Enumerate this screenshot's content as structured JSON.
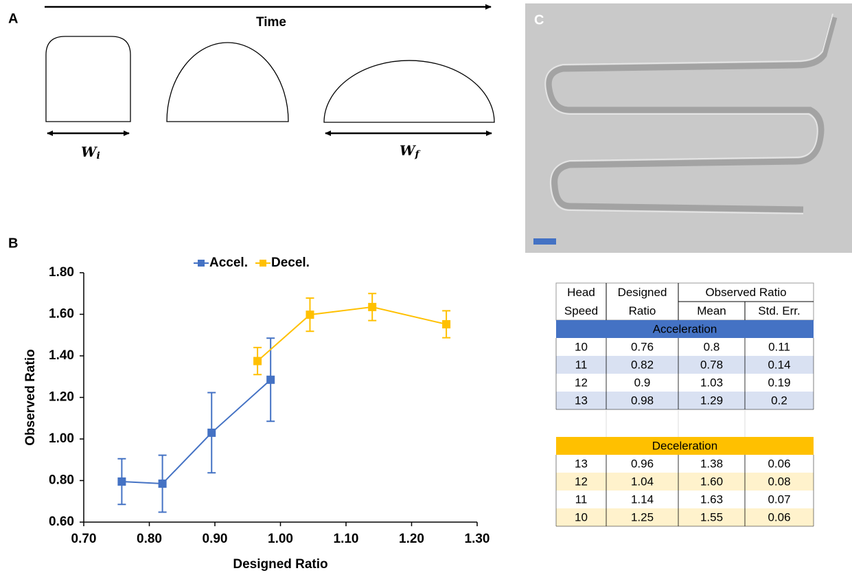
{
  "panels": {
    "a": "A",
    "b": "B",
    "c": "C"
  },
  "diagram": {
    "axis_label": "Time",
    "width_initial": {
      "symbol": "W",
      "sub": "i"
    },
    "width_final": {
      "symbol": "W",
      "sub": "f"
    }
  },
  "chart_data": {
    "type": "line",
    "x_label": "Designed Ratio",
    "y_label": "Observed Ratio",
    "legend": "top",
    "xlim": [
      0.7,
      1.3
    ],
    "ylim": [
      0.6,
      1.8
    ],
    "xticks": [
      {
        "value": 0.7,
        "label": "0.70"
      },
      {
        "value": 0.8,
        "label": "0.80"
      },
      {
        "value": 0.9,
        "label": "0.90"
      },
      {
        "value": 1.0,
        "label": "1.00"
      },
      {
        "value": 1.1,
        "label": "1.10"
      },
      {
        "value": 1.2,
        "label": "1.20"
      },
      {
        "value": 1.3,
        "label": "1.30"
      }
    ],
    "yticks": [
      {
        "value": 0.6,
        "label": "0.60"
      },
      {
        "value": 0.8,
        "label": "0.80"
      },
      {
        "value": 1.0,
        "label": "1.00"
      },
      {
        "value": 1.2,
        "label": "1.20"
      },
      {
        "value": 1.4,
        "label": "1.40"
      },
      {
        "value": 1.6,
        "label": "1.60"
      },
      {
        "value": 1.8,
        "label": "1.80"
      }
    ],
    "series": [
      {
        "name": "Accel.",
        "color": "#4472c4",
        "x": [
          0.758,
          0.82,
          0.895,
          0.985
        ],
        "values": [
          0.795,
          0.785,
          1.03,
          1.285
        ],
        "errors": [
          0.11,
          0.137,
          0.193,
          0.2
        ]
      },
      {
        "name": "Decel.",
        "color": "#ffc000",
        "x": [
          0.965,
          1.045,
          1.14,
          1.253
        ],
        "values": [
          1.375,
          1.598,
          1.635,
          1.552
        ],
        "errors": [
          0.065,
          0.08,
          0.065,
          0.065
        ]
      }
    ]
  },
  "table": {
    "header": [
      [
        "Head",
        "Designed",
        "Observed Ratio"
      ],
      [
        "Speed",
        "Ratio",
        "Mean",
        "Std. Err."
      ]
    ],
    "sections": [
      {
        "title": "Acceleration",
        "color": "#4472c4",
        "stripe": "#d9e1f2",
        "rows": [
          [
            "10",
            "0.76",
            "0.8",
            "0.11"
          ],
          [
            "11",
            "0.82",
            "0.78",
            "0.14"
          ],
          [
            "12",
            "0.9",
            "1.03",
            "0.19"
          ],
          [
            "13",
            "0.98",
            "1.29",
            "0.2"
          ]
        ]
      },
      {
        "title": "Deceleration",
        "color": "#ffc000",
        "stripe": "#fff2cc",
        "rows": [
          [
            "13",
            "0.96",
            "1.38",
            "0.06"
          ],
          [
            "12",
            "1.04",
            "1.60",
            "0.08"
          ],
          [
            "11",
            "1.14",
            "1.63",
            "0.07"
          ],
          [
            "10",
            "1.25",
            "1.55",
            "0.06"
          ]
        ]
      }
    ]
  }
}
